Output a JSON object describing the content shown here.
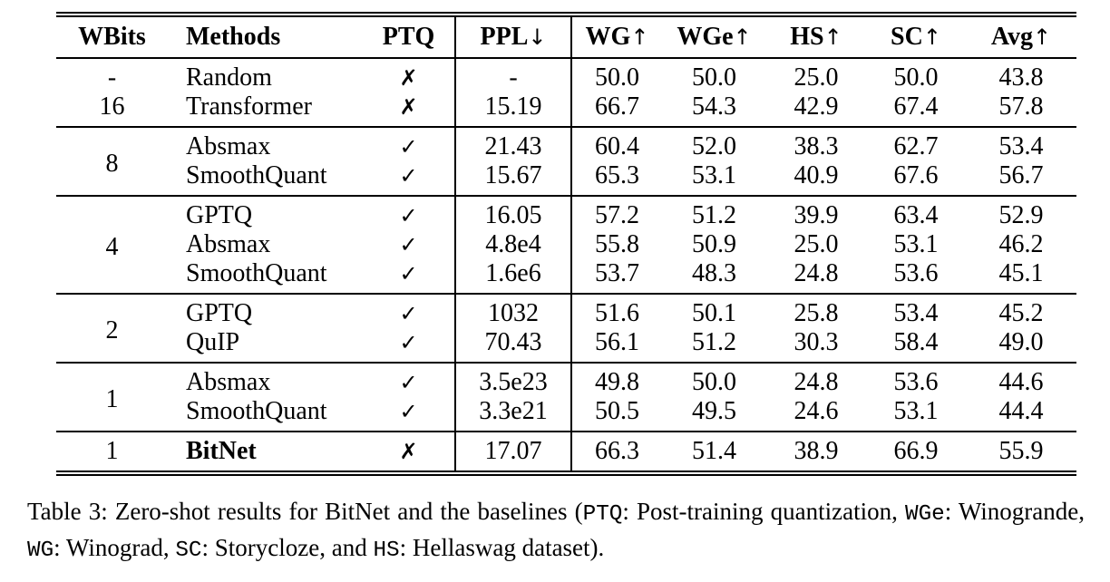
{
  "table": {
    "headers": [
      {
        "label": "WBits",
        "arrow": ""
      },
      {
        "label": "Methods",
        "arrow": ""
      },
      {
        "label": "PTQ",
        "arrow": ""
      },
      {
        "label": "PPL",
        "arrow": "↓"
      },
      {
        "label": "WG",
        "arrow": "↑"
      },
      {
        "label": "WGe",
        "arrow": "↑"
      },
      {
        "label": "HS",
        "arrow": "↑"
      },
      {
        "label": "SC",
        "arrow": "↑"
      },
      {
        "label": "Avg",
        "arrow": "↑"
      }
    ],
    "groups": [
      {
        "rows": [
          {
            "wbits": "-",
            "method": "Random",
            "ptq": "✗",
            "ppl": "-",
            "wg": "50.0",
            "wge": "50.0",
            "hs": "25.0",
            "sc": "50.0",
            "avg": "43.8"
          },
          {
            "wbits": "16",
            "method": "Transformer",
            "ptq": "✗",
            "ppl": "15.19",
            "wg": "66.7",
            "wge": "54.3",
            "hs": "42.9",
            "sc": "67.4",
            "avg": "57.8"
          }
        ]
      },
      {
        "wbits": "8",
        "rows": [
          {
            "method": "Absmax",
            "ptq": "✓",
            "ppl": "21.43",
            "wg": "60.4",
            "wge": "52.0",
            "hs": "38.3",
            "sc": "62.7",
            "avg": "53.4"
          },
          {
            "method": "SmoothQuant",
            "ptq": "✓",
            "ppl": "15.67",
            "wg": "65.3",
            "wge": "53.1",
            "hs": "40.9",
            "sc": "67.6",
            "avg": "56.7"
          }
        ]
      },
      {
        "wbits": "4",
        "rows": [
          {
            "method": "GPTQ",
            "ptq": "✓",
            "ppl": "16.05",
            "wg": "57.2",
            "wge": "51.2",
            "hs": "39.9",
            "sc": "63.4",
            "avg": "52.9"
          },
          {
            "method": "Absmax",
            "ptq": "✓",
            "ppl": "4.8e4",
            "wg": "55.8",
            "wge": "50.9",
            "hs": "25.0",
            "sc": "53.1",
            "avg": "46.2"
          },
          {
            "method": "SmoothQuant",
            "ptq": "✓",
            "ppl": "1.6e6",
            "wg": "53.7",
            "wge": "48.3",
            "hs": "24.8",
            "sc": "53.6",
            "avg": "45.1"
          }
        ]
      },
      {
        "wbits": "2",
        "rows": [
          {
            "method": "GPTQ",
            "ptq": "✓",
            "ppl": "1032",
            "wg": "51.6",
            "wge": "50.1",
            "hs": "25.8",
            "sc": "53.4",
            "avg": "45.2"
          },
          {
            "method": "QuIP",
            "ptq": "✓",
            "ppl": "70.43",
            "wg": "56.1",
            "wge": "51.2",
            "hs": "30.3",
            "sc": "58.4",
            "avg": "49.0"
          }
        ]
      },
      {
        "wbits": "1",
        "rows": [
          {
            "method": "Absmax",
            "ptq": "✓",
            "ppl": "3.5e23",
            "wg": "49.8",
            "wge": "50.0",
            "hs": "24.8",
            "sc": "53.6",
            "avg": "44.6"
          },
          {
            "method": "SmoothQuant",
            "ptq": "✓",
            "ppl": "3.3e21",
            "wg": "50.5",
            "wge": "49.5",
            "hs": "24.6",
            "sc": "53.1",
            "avg": "44.4"
          }
        ]
      },
      {
        "rows": [
          {
            "wbits": "1",
            "method": "BitNet",
            "ptq": "✗",
            "ppl": "17.07",
            "wg": "66.3",
            "wge": "51.4",
            "hs": "38.9",
            "sc": "66.9",
            "avg": "55.9"
          }
        ]
      }
    ]
  },
  "caption": {
    "segments": [
      {
        "text": "Table 3: Zero-shot results for BitNet and the baselines ("
      },
      {
        "text": "PTQ"
      },
      {
        "text": ": Post-training quantization, "
      },
      {
        "text": "WGe"
      },
      {
        "text": ": Wino­grande, "
      },
      {
        "text": "WG"
      },
      {
        "text": ": Winograd, "
      },
      {
        "text": "SC"
      },
      {
        "text": ": Storycloze, and "
      },
      {
        "text": "HS"
      },
      {
        "text": ": Hellaswag dataset)."
      }
    ]
  }
}
